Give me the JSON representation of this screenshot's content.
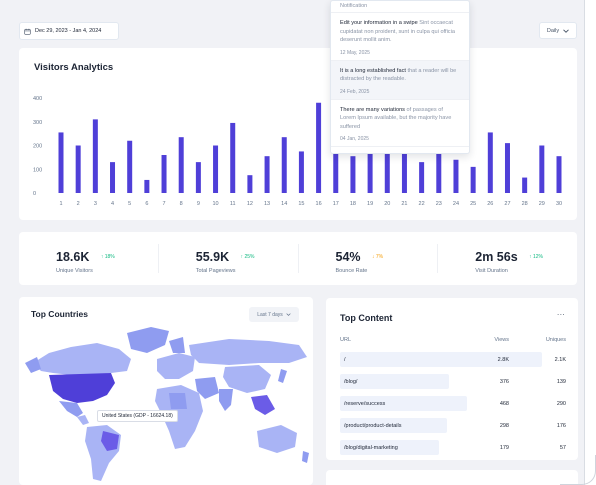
{
  "header": {
    "date_range": "Dec 29, 2023 - Jan 4, 2024",
    "period_select": "Daily"
  },
  "visitors": {
    "title": "Visitors Analytics"
  },
  "chart_data": {
    "type": "bar",
    "categories": [
      "1",
      "2",
      "3",
      "4",
      "5",
      "6",
      "7",
      "8",
      "9",
      "10",
      "11",
      "12",
      "13",
      "14",
      "15",
      "16",
      "17",
      "18",
      "19",
      "20",
      "21",
      "22",
      "23",
      "24",
      "25",
      "26",
      "27",
      "28",
      "29",
      "30"
    ],
    "values": [
      255,
      200,
      310,
      130,
      220,
      55,
      160,
      235,
      130,
      200,
      295,
      75,
      155,
      235,
      175,
      380,
      290,
      155,
      200,
      165,
      215,
      130,
      185,
      140,
      110,
      255,
      210,
      65,
      200,
      155
    ],
    "ylim": [
      0,
      400
    ],
    "yticks": [
      "0",
      "100",
      "200",
      "300",
      "400"
    ],
    "color": "#4f3fd8",
    "title": "",
    "xlabel": "",
    "ylabel": ""
  },
  "stats": [
    {
      "value": "18.6K",
      "delta": "18%",
      "direction": "up",
      "label": "Unique Visitors"
    },
    {
      "value": "55.9K",
      "delta": "25%",
      "direction": "up",
      "label": "Total Pageviews"
    },
    {
      "value": "54%",
      "delta": "7%",
      "direction": "down",
      "label": "Bounce Rate"
    },
    {
      "value": "2m 56s",
      "delta": "12%",
      "direction": "up",
      "label": "Visit Duration"
    }
  ],
  "top_countries": {
    "title": "Top Countries",
    "period_select": "Last 7 days",
    "tooltip": "United States (GDP - 16624.18)"
  },
  "top_content": {
    "title": "Top Content",
    "more_label": "...",
    "col_url": "URL",
    "col_views": "Views",
    "col_uniques": "Uniques",
    "rows": [
      {
        "url": "/",
        "views": "2.8K",
        "uniques": "2.1K",
        "share": 1.0
      },
      {
        "url": "/blog/",
        "views": "376",
        "uniques": "139",
        "share": 0.54
      },
      {
        "url": "/reserve/success",
        "views": "468",
        "uniques": "290",
        "share": 0.63
      },
      {
        "url": "/product/product-details",
        "views": "298",
        "uniques": "176",
        "share": 0.53
      },
      {
        "url": "/blog/digital-marketing",
        "views": "179",
        "uniques": "57",
        "share": 0.49
      }
    ]
  },
  "notifications": {
    "heading": "Notification",
    "items": [
      {
        "strong": "Edit your information in a swipe",
        "rest": " Sint occaecat cupidatat non proident, sunt in culpa qui officia deserunt mollit anim.",
        "date": "12 May, 2025"
      },
      {
        "strong": "It is a long established fact",
        "rest": " that a reader will be distracted by the readable.",
        "date": "24 Feb, 2025"
      },
      {
        "strong": "There are many variations",
        "rest": " of passages of Lorem Ipsum available, but the majority have suffered",
        "date": "04 Jan, 2025"
      }
    ]
  },
  "colors": {
    "accent": "#4f3fd8",
    "up": "#10b981",
    "down": "#f59e0b",
    "map_dark": "#4f3fd8",
    "map_light": "#a9b4f5"
  }
}
